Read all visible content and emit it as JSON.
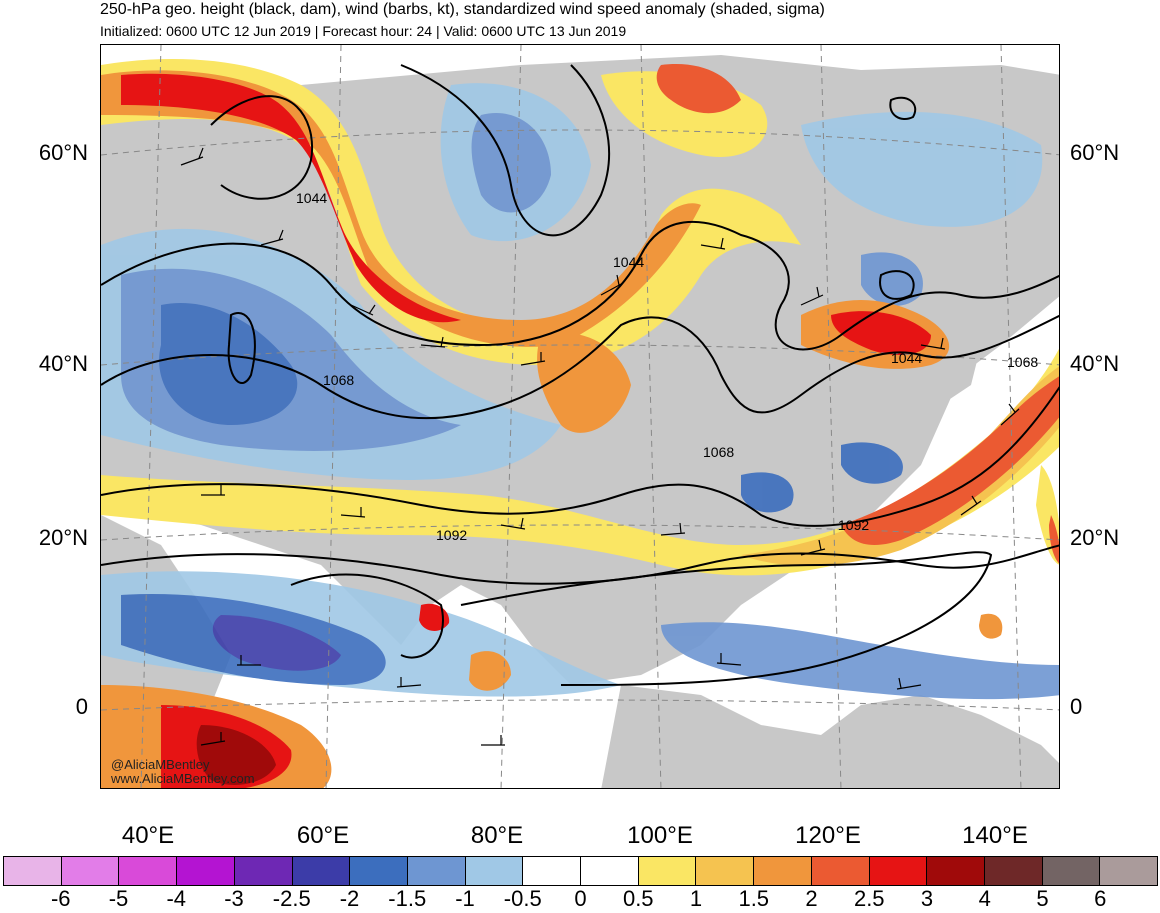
{
  "header": {
    "title": "250-hPa geo. height (black, dam), wind (barbs, kt), standardized wind speed anomaly (shaded, sigma)",
    "subtitle": "Initialized: 0600 UTC 12 Jun 2019 | Forecast hour: 24 | Valid: 0600 UTC 13 Jun 2019"
  },
  "map": {
    "lat_labels": [
      "60°N",
      "40°N",
      "20°N",
      "0"
    ],
    "lon_labels": [
      "40°E",
      "60°E",
      "80°E",
      "100°E",
      "120°E",
      "140°E"
    ],
    "contour_labels": [
      "1044",
      "1044",
      "1044",
      "1068",
      "1068",
      "1068",
      "1092",
      "1092"
    ],
    "credit_handle": "@AliciaMBentley",
    "credit_url": "www.AliciaMBentley.com",
    "land_color": "#c8c8c8",
    "contour_color": "#000000"
  },
  "colorbar": {
    "colors": [
      "#e8b4e8",
      "#e27de8",
      "#d94ad9",
      "#b414d2",
      "#6e28b4",
      "#3c3ca8",
      "#3c6ebe",
      "#6e96d2",
      "#a0c8e6",
      "#ffffff",
      "#ffffff",
      "#fae664",
      "#f5c350",
      "#f0963c",
      "#eb5a32",
      "#e61414",
      "#a00a0a",
      "#6e2828",
      "#736464",
      "#aa9b9b"
    ],
    "labels": [
      "-6",
      "-5",
      "-4",
      "-3",
      "-2.5",
      "-2",
      "-1.5",
      "-1",
      "-0.5",
      "0",
      "0.5",
      "1",
      "1.5",
      "2",
      "2.5",
      "3",
      "4",
      "5",
      "6"
    ]
  }
}
